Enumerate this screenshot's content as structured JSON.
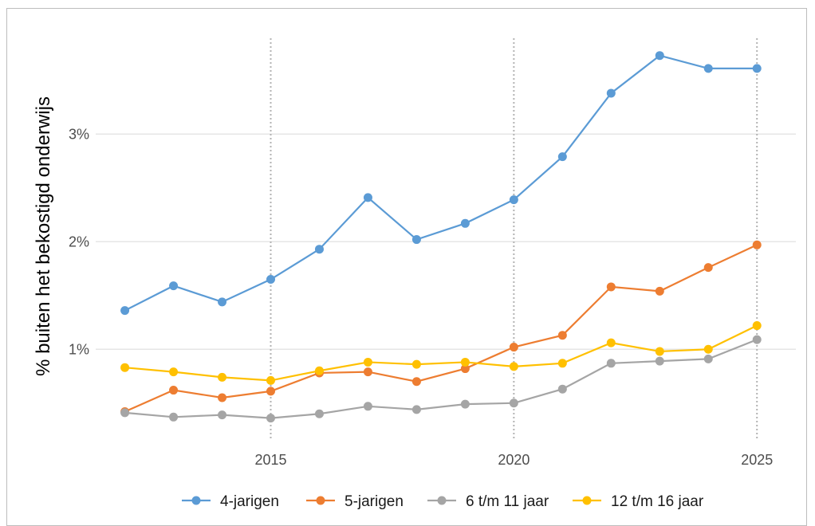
{
  "chart_data": {
    "type": "line",
    "title": "",
    "xlabel": "",
    "ylabel": "% buiten het bekostigd onderwijs",
    "x": [
      2012,
      2013,
      2014,
      2015,
      2016,
      2017,
      2018,
      2019,
      2020,
      2021,
      2022,
      2023,
      2024,
      2025
    ],
    "xlim": [
      2011.4,
      2025.8
    ],
    "ylim": [
      0.15,
      3.95
    ],
    "x_ticks": [
      2015,
      2020,
      2025
    ],
    "x_tick_labels": [
      "2015",
      "2020",
      "2025"
    ],
    "y_ticks": [
      1,
      2,
      3
    ],
    "y_tick_labels": [
      "1%",
      "2%",
      "3%"
    ],
    "y_grid": true,
    "x_reference_lines": [
      2015,
      2020,
      2025
    ],
    "legend_position": "bottom",
    "series": [
      {
        "name": "4-jarigen",
        "color": "#5b9bd5",
        "values": [
          1.36,
          1.59,
          1.44,
          1.65,
          1.93,
          2.41,
          2.02,
          2.17,
          2.39,
          2.79,
          3.38,
          3.73,
          3.61,
          3.61
        ]
      },
      {
        "name": "5-jarigen",
        "color": "#ed7d31",
        "values": [
          0.42,
          0.62,
          0.55,
          0.61,
          0.78,
          0.79,
          0.7,
          0.82,
          1.02,
          1.13,
          1.58,
          1.54,
          1.76,
          1.97
        ]
      },
      {
        "name": "6 t/m 11 jaar",
        "color": "#a5a5a5",
        "values": [
          0.41,
          0.37,
          0.39,
          0.36,
          0.4,
          0.47,
          0.44,
          0.49,
          0.5,
          0.63,
          0.87,
          0.89,
          0.91,
          1.09
        ]
      },
      {
        "name": "12 t/m 16 jaar",
        "color": "#ffc000",
        "values": [
          0.83,
          0.79,
          0.74,
          0.71,
          0.8,
          0.88,
          0.86,
          0.88,
          0.84,
          0.87,
          1.06,
          0.98,
          1.0,
          1.22
        ]
      }
    ]
  }
}
